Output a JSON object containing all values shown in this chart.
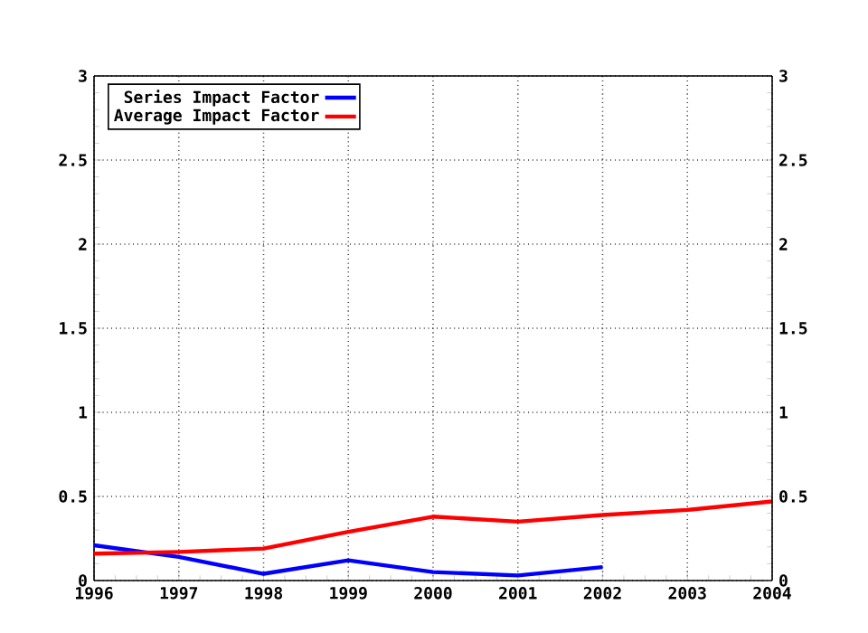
{
  "chart_data": {
    "type": "line",
    "x": [
      1996,
      1997,
      1998,
      1999,
      2000,
      2001,
      2002,
      2003,
      2004
    ],
    "series": [
      {
        "name": "Series Impact Factor",
        "color": "#0000ff",
        "values": [
          0.21,
          0.14,
          0.04,
          0.12,
          0.05,
          0.03,
          0.08,
          null,
          null
        ]
      },
      {
        "name": "Average Impact Factor",
        "color": "#ff0000",
        "values": [
          0.16,
          0.17,
          0.19,
          0.29,
          0.38,
          0.35,
          0.39,
          0.42,
          0.47
        ]
      }
    ],
    "xlim": [
      1996,
      2004
    ],
    "xticks": [
      1996,
      1997,
      1998,
      1999,
      2000,
      2001,
      2002,
      2003,
      2004
    ],
    "ylim": [
      0,
      3
    ],
    "yticks": [
      0,
      0.5,
      1,
      1.5,
      2,
      2.5,
      3
    ],
    "y2lim": [
      0,
      3
    ],
    "y2ticks": [
      0,
      0.5,
      1,
      1.5,
      2,
      2.5,
      3
    ],
    "grid": true,
    "legend": "top left",
    "marker": "none",
    "line_style": "solid"
  }
}
